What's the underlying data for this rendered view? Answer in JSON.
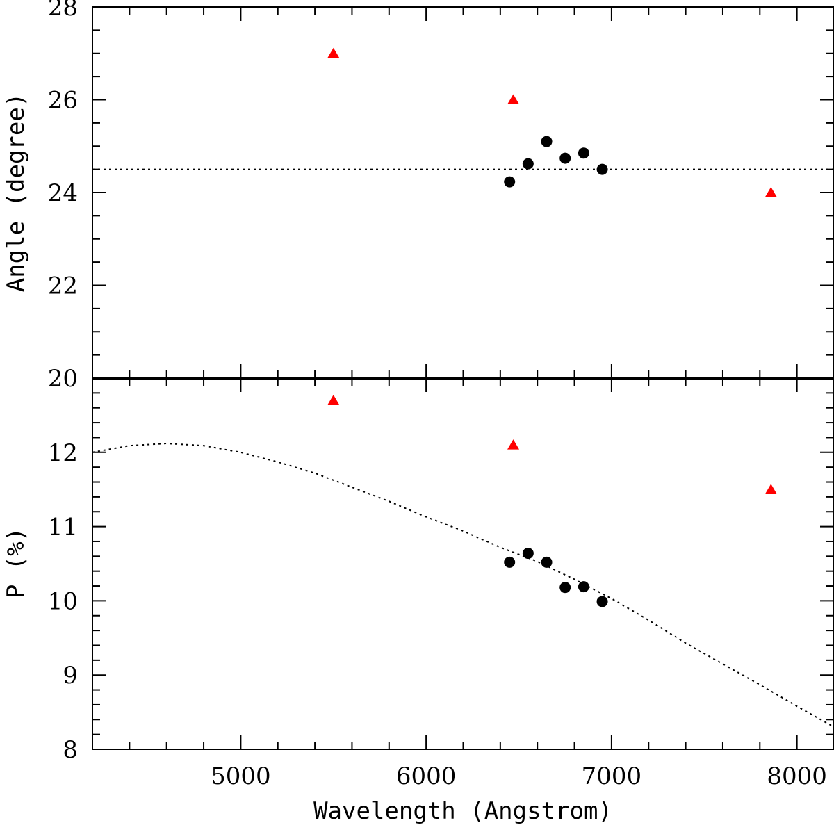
{
  "chart_data": [
    {
      "id": "angle",
      "type": "scatter",
      "ylabel": "Angle (degree)",
      "xlim": [
        4200,
        8200
      ],
      "ylim": [
        20,
        28
      ],
      "x_major_ticks": [
        5000,
        6000,
        7000,
        8000
      ],
      "x_minor_step": 200,
      "y_major_ticks": [
        20,
        22,
        24,
        26,
        28
      ],
      "y_tick_labels": [
        "20",
        "22",
        "24",
        "26",
        "28"
      ],
      "y_minor_step": 0.5,
      "series": [
        {
          "name": "circles",
          "marker": "circle",
          "color": "#000000",
          "points": [
            [
              6450,
              24.23
            ],
            [
              6550,
              24.62
            ],
            [
              6650,
              25.1
            ],
            [
              6750,
              24.74
            ],
            [
              6850,
              24.85
            ],
            [
              6950,
              24.5
            ]
          ]
        },
        {
          "name": "triangles",
          "marker": "triangle",
          "color": "#ff0000",
          "points": [
            [
              5500,
              27.0
            ],
            [
              6470,
              26.0
            ],
            [
              7860,
              24.0
            ]
          ]
        }
      ],
      "reference_line": {
        "type": "horizontal",
        "y": 24.5,
        "style": "dotted"
      }
    },
    {
      "id": "polarization",
      "type": "scatter",
      "xlabel": "Wavelength (Angstrom)",
      "ylabel": "P (%)",
      "xlim": [
        4200,
        8200
      ],
      "ylim": [
        8,
        13
      ],
      "x_major_ticks": [
        5000,
        6000,
        7000,
        8000
      ],
      "x_tick_labels": [
        "5000",
        "6000",
        "7000",
        "8000"
      ],
      "x_minor_step": 200,
      "y_major_ticks": [
        8,
        9,
        10,
        11,
        12
      ],
      "y_tick_labels": [
        "8",
        "9",
        "10",
        "11",
        "12"
      ],
      "y_minor_step": 0.2,
      "series": [
        {
          "name": "circles",
          "marker": "circle",
          "color": "#000000",
          "points": [
            [
              6450,
              10.52
            ],
            [
              6550,
              10.64
            ],
            [
              6650,
              10.52
            ],
            [
              6750,
              10.18
            ],
            [
              6850,
              10.19
            ],
            [
              6950,
              9.99
            ]
          ]
        },
        {
          "name": "triangles",
          "marker": "triangle",
          "color": "#ff0000",
          "points": [
            [
              5500,
              12.7
            ],
            [
              6470,
              12.1
            ],
            [
              7860,
              11.5
            ]
          ]
        }
      ],
      "fit_curve": {
        "style": "dotted",
        "points": [
          [
            4200,
            12.0
          ],
          [
            4400,
            12.09
          ],
          [
            4600,
            12.12
          ],
          [
            4800,
            12.09
          ],
          [
            5000,
            12.0
          ],
          [
            5200,
            11.87
          ],
          [
            5400,
            11.72
          ],
          [
            5600,
            11.53
          ],
          [
            5800,
            11.34
          ],
          [
            6000,
            11.13
          ],
          [
            6200,
            10.94
          ],
          [
            6400,
            10.72
          ],
          [
            6600,
            10.53
          ],
          [
            6800,
            10.29
          ],
          [
            7000,
            10.03
          ],
          [
            7200,
            9.74
          ],
          [
            7400,
            9.43
          ],
          [
            7600,
            9.15
          ],
          [
            7800,
            8.87
          ],
          [
            8000,
            8.58
          ],
          [
            8200,
            8.3
          ]
        ]
      }
    }
  ]
}
